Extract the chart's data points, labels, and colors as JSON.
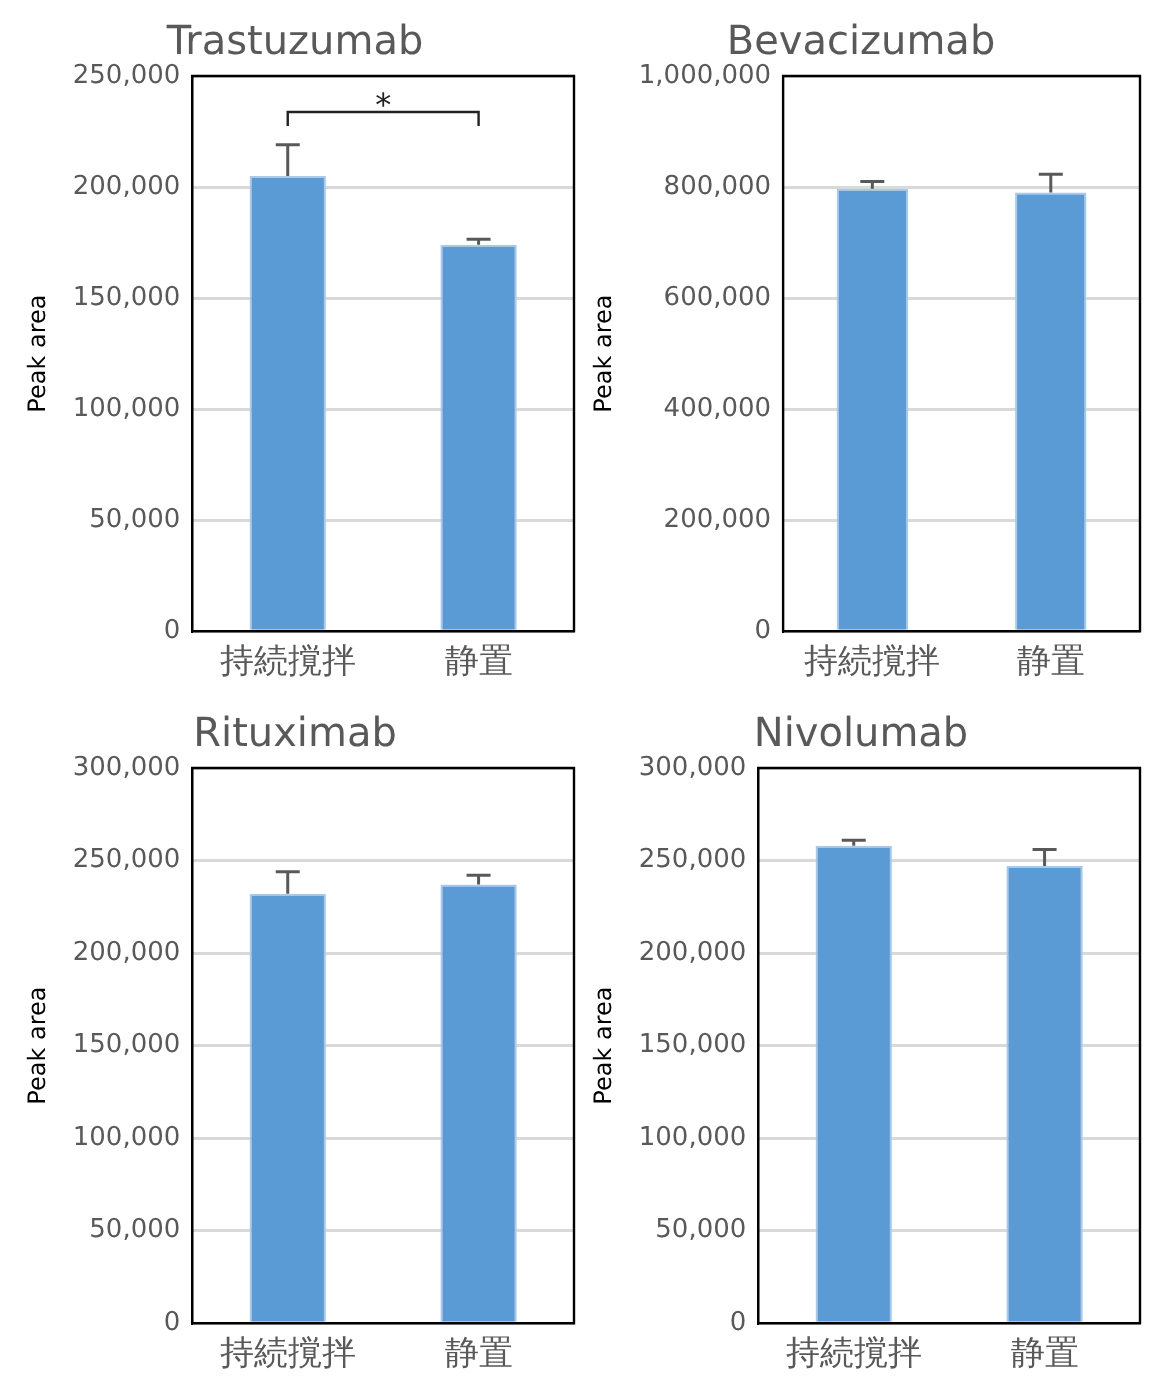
{
  "chart_data": [
    {
      "type": "bar",
      "title": "Trastuzumab",
      "ylabel": "Peak area",
      "categories": [
        "持続撹拌",
        "静置"
      ],
      "values": [
        205000,
        174000
      ],
      "errors": [
        [
          205000,
          219000
        ],
        [
          174000,
          176500
        ]
      ],
      "color": "#5b9bd5",
      "ylim": [
        0,
        250000
      ],
      "yticks": [
        {
          "value": 0,
          "label": "0"
        },
        {
          "value": 50000,
          "label": "50,000"
        },
        {
          "value": 100000,
          "label": "100,000"
        },
        {
          "value": 150000,
          "label": "150,000"
        },
        {
          "value": 200000,
          "label": "200,000"
        },
        {
          "value": 250000,
          "label": "250,000"
        }
      ],
      "grid": "y",
      "annotations": [
        "*"
      ]
    },
    {
      "type": "bar",
      "title": "Bevacizumab",
      "ylabel": "Peak area",
      "categories": [
        "持続撹拌",
        "静置"
      ],
      "values": [
        797000,
        790000
      ],
      "errors": [
        [
          797000,
          810000
        ],
        [
          790000,
          823000
        ]
      ],
      "color": "#5b9bd5",
      "ylim": [
        0,
        1000000
      ],
      "yticks": [
        {
          "value": 0,
          "label": "0"
        },
        {
          "value": 200000,
          "label": "200,000"
        },
        {
          "value": 400000,
          "label": "400,000"
        },
        {
          "value": 600000,
          "label": "600,000"
        },
        {
          "value": 800000,
          "label": "800,000"
        },
        {
          "value": 1000000,
          "label": "1,000,000"
        }
      ],
      "grid": "y"
    },
    {
      "type": "bar",
      "title": "Rituximab",
      "ylabel": "Peak area",
      "categories": [
        "持続撹拌",
        "静置"
      ],
      "values": [
        232000,
        237000
      ],
      "errors": [
        [
          232000,
          244000
        ],
        [
          237000,
          242000
        ]
      ],
      "color": "#5b9bd5",
      "ylim": [
        0,
        300000
      ],
      "yticks": [
        {
          "value": 0,
          "label": "0"
        },
        {
          "value": 50000,
          "label": "50,000"
        },
        {
          "value": 100000,
          "label": "100,000"
        },
        {
          "value": 150000,
          "label": "150,000"
        },
        {
          "value": 200000,
          "label": "200,000"
        },
        {
          "value": 250000,
          "label": "250,000"
        },
        {
          "value": 300000,
          "label": "300,000"
        }
      ],
      "grid": "y"
    },
    {
      "type": "bar",
      "title": "Nivolumab",
      "ylabel": "Peak area",
      "categories": [
        "持続撹拌",
        "静置"
      ],
      "values": [
        258000,
        247000
      ],
      "errors": [
        [
          258000,
          261000
        ],
        [
          247000,
          256000
        ]
      ],
      "color": "#5b9bd5",
      "ylim": [
        0,
        300000
      ],
      "yticks": [
        {
          "value": 0,
          "label": "0"
        },
        {
          "value": 50000,
          "label": "50,000"
        },
        {
          "value": 100000,
          "label": "100,000"
        },
        {
          "value": 150000,
          "label": "150,000"
        },
        {
          "value": 200000,
          "label": "200,000"
        },
        {
          "value": 250000,
          "label": "250,000"
        },
        {
          "value": 300000,
          "label": "300,000"
        }
      ],
      "grid": "y"
    }
  ]
}
